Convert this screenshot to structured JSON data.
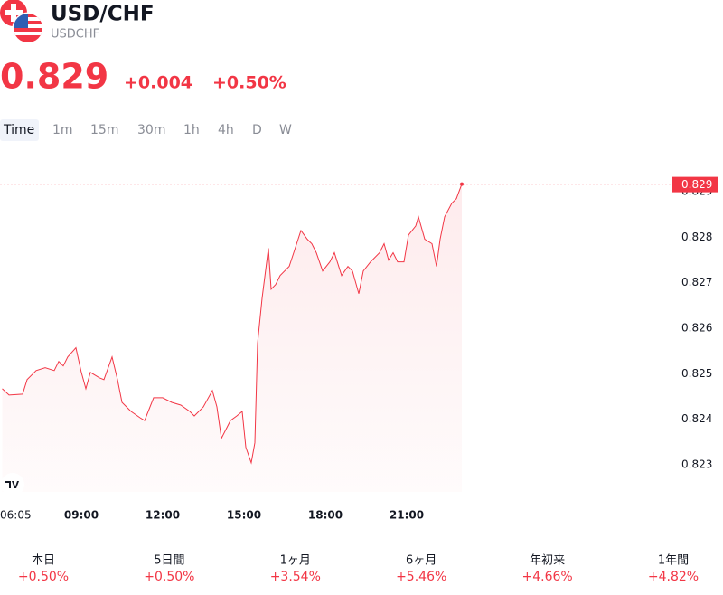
{
  "header": {
    "title": "USD/CHF",
    "symbol": "USDCHF",
    "price": "0.829",
    "change": "+0.004",
    "change_percent": "+0.50%"
  },
  "timeframes": [
    "Time",
    "1m",
    "15m",
    "30m",
    "1h",
    "4h",
    "D",
    "W"
  ],
  "chart_data": {
    "type": "line",
    "x": [
      "06:05",
      "06:20",
      "06:50",
      "07:00",
      "07:20",
      "07:40",
      "08:00",
      "08:10",
      "08:20",
      "08:30",
      "08:48",
      "09:00",
      "09:10",
      "09:20",
      "09:40",
      "09:50",
      "10:08",
      "10:20",
      "10:30",
      "10:50",
      "11:10",
      "11:20",
      "11:40",
      "12:00",
      "12:20",
      "12:40",
      "13:00",
      "13:10",
      "13:30",
      "13:50",
      "14:00",
      "14:10",
      "14:30",
      "14:44",
      "14:56",
      "15:04",
      "15:16",
      "15:24",
      "15:30",
      "15:40",
      "15:54",
      "16:00",
      "16:10",
      "16:20",
      "16:40",
      "16:50",
      "17:06",
      "17:20",
      "17:30",
      "17:40",
      "17:54",
      "18:10",
      "18:20",
      "18:36",
      "18:50",
      "19:00",
      "19:14",
      "19:24",
      "19:40",
      "20:00",
      "20:10",
      "20:20",
      "20:30",
      "20:40",
      "20:54",
      "21:04",
      "21:20",
      "21:26",
      "21:40",
      "21:56",
      "22:06",
      "22:14",
      "22:24",
      "22:40",
      "22:50",
      "23:02"
    ],
    "values": [
      0.82467,
      0.82453,
      0.82455,
      0.82487,
      0.82507,
      0.82513,
      0.82507,
      0.82527,
      0.82517,
      0.82537,
      0.82557,
      0.82503,
      0.82467,
      0.82503,
      0.82491,
      0.82487,
      0.82537,
      0.82487,
      0.82437,
      0.82417,
      0.82403,
      0.82397,
      0.82447,
      0.82447,
      0.82437,
      0.82431,
      0.82417,
      0.82407,
      0.82427,
      0.82463,
      0.82427,
      0.82358,
      0.82397,
      0.82407,
      0.82417,
      0.82338,
      0.82304,
      0.82348,
      0.82567,
      0.82666,
      0.82776,
      0.82686,
      0.82696,
      0.82716,
      0.82736,
      0.82766,
      0.82815,
      0.82796,
      0.82786,
      0.82766,
      0.82726,
      0.82746,
      0.82766,
      0.82716,
      0.82736,
      0.82726,
      0.82676,
      0.82726,
      0.82746,
      0.82766,
      0.82786,
      0.8275,
      0.82766,
      0.82746,
      0.82746,
      0.82805,
      0.82825,
      0.82845,
      0.82796,
      0.82786,
      0.82736,
      0.82796,
      0.82845,
      0.82875,
      0.82885,
      0.82917
    ],
    "color": "#f23645",
    "xlim": [
      "06:00",
      "23:04"
    ],
    "xticks": [
      "06:05",
      "09:00",
      "12:00",
      "15:00",
      "18:00",
      "21:00"
    ],
    "ylim": [
      0.8224,
      0.8296
    ],
    "yticks": [
      0.823,
      0.824,
      0.825,
      0.826,
      0.827,
      0.828,
      0.829
    ],
    "last_price": {
      "value": 0.82917,
      "label": "0.829"
    },
    "grid": false
  },
  "periods": [
    {
      "label": "本日",
      "change": "+0.50%"
    },
    {
      "label": "5日間",
      "change": "+0.50%"
    },
    {
      "label": "1ヶ月",
      "change": "+3.54%"
    },
    {
      "label": "6ヶ月",
      "change": "+5.46%"
    },
    {
      "label": "年初来",
      "change": "+4.66%"
    },
    {
      "label": "1年間",
      "change": "+4.82%"
    }
  ]
}
